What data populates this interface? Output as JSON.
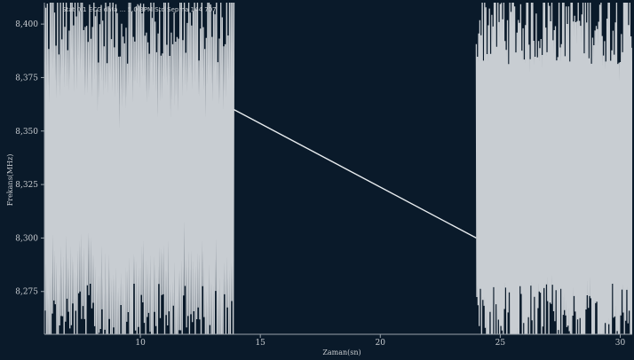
{
  "header": {
    "text": "Stat 0.1 ECG data ... 5.0 BPM Std Sepma 144 707"
  },
  "chart_data": {
    "type": "line",
    "xlabel": "Zaman(sn)",
    "ylabel": "Frekans(MHz)",
    "xlim": [
      6,
      30.5
    ],
    "ylim": [
      8.255,
      8.41
    ],
    "x_ticks": [
      10,
      15,
      20,
      25,
      30
    ],
    "y_ticks": [
      8.275,
      8.3,
      8.325,
      8.35,
      8.375,
      8.4
    ],
    "x_tick_labels": [
      "10",
      "15",
      "20",
      "25",
      "30"
    ],
    "y_tick_labels": [
      "8,275",
      "8,300",
      "8,325",
      "8,350",
      "8,375",
      "8,400"
    ],
    "grid": false,
    "series": [
      {
        "color": "#c8cdd2",
        "segments": [
          {
            "kind": "oscillation",
            "x_start": 6.0,
            "x_end": 13.9,
            "y_min": 8.255,
            "y_max": 8.41,
            "center": 8.33
          },
          {
            "kind": "line",
            "points": [
              [
                13.9,
                8.36
              ],
              [
                24.0,
                8.3
              ]
            ]
          },
          {
            "kind": "oscillation",
            "x_start": 24.0,
            "x_end": 30.5,
            "y_min": 8.255,
            "y_max": 8.41,
            "center": 8.33
          }
        ]
      }
    ]
  }
}
